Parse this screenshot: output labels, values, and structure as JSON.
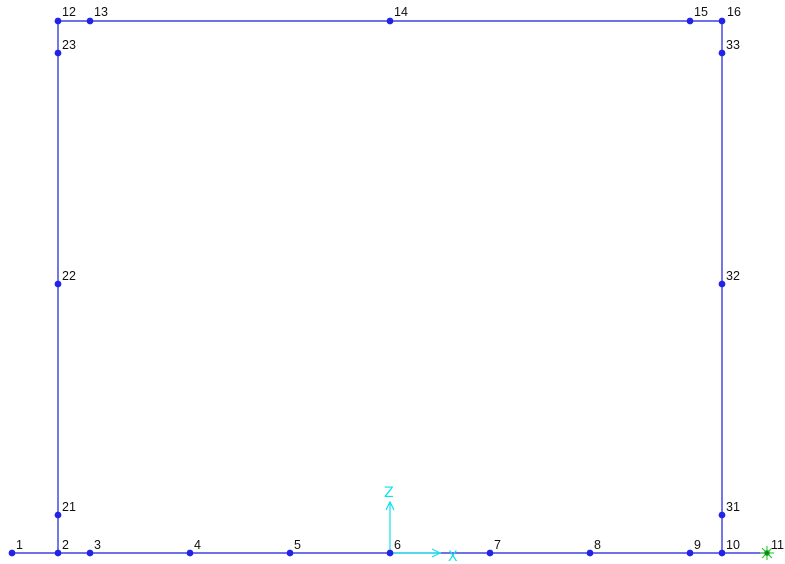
{
  "colors": {
    "frame": "#1c1cd8",
    "node": "#2323e6",
    "label": "#111111",
    "axis": "#10e0ec",
    "support": "#2ec82e"
  },
  "axes": {
    "x_label": "X",
    "z_label": "Z"
  },
  "nodes": [
    {
      "id": "1"
    },
    {
      "id": "2"
    },
    {
      "id": "3"
    },
    {
      "id": "4"
    },
    {
      "id": "5"
    },
    {
      "id": "6"
    },
    {
      "id": "7"
    },
    {
      "id": "8"
    },
    {
      "id": "9"
    },
    {
      "id": "10"
    },
    {
      "id": "11"
    },
    {
      "id": "12"
    },
    {
      "id": "13"
    },
    {
      "id": "14"
    },
    {
      "id": "15"
    },
    {
      "id": "16"
    },
    {
      "id": "21"
    },
    {
      "id": "22"
    },
    {
      "id": "23"
    },
    {
      "id": "31"
    },
    {
      "id": "32"
    },
    {
      "id": "33"
    }
  ],
  "supports": [
    {
      "node": "11",
      "icon": "support-star-icon"
    }
  ]
}
